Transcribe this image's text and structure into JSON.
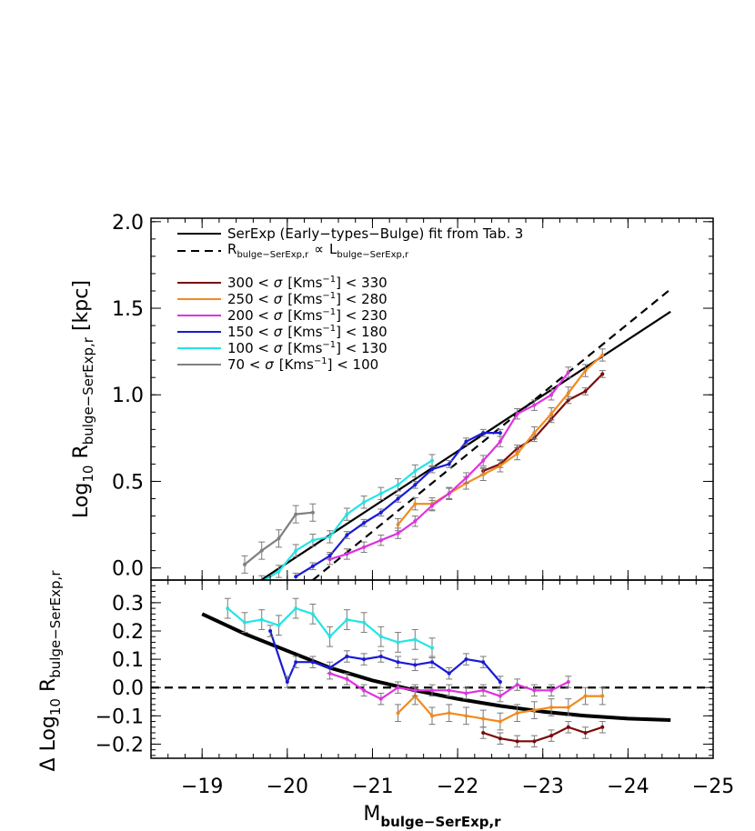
{
  "chart_data": [
    {
      "type": "line",
      "panel": "top",
      "ylabel": "Log10 Rbulge-SerExp,r [kpc]",
      "ylabel_parts": {
        "prefix": "Log",
        "sub1": "10",
        "main": " R",
        "sub2": "bulge−SerExp,r",
        "unit": "  [kpc]"
      },
      "xlim": [
        -18.4,
        -25.0
      ],
      "ylim": [
        -0.07,
        2.02
      ],
      "y_ticks": [
        {
          "value": 0.0,
          "label": "0.0"
        },
        {
          "value": 0.5,
          "label": "0.5"
        },
        {
          "value": 1.0,
          "label": "1.0"
        },
        {
          "value": 1.5,
          "label": "1.5"
        },
        {
          "value": 2.0,
          "label": "2.0"
        }
      ],
      "legend_position": "top-left",
      "legend": {
        "fit": "SerExp (Early−types−Bulge) fit from Tab. 3",
        "proportional": {
          "r_main": "R",
          "r_sub": "bulge−SerExp,r",
          "prop": "∝",
          "l_main": "L",
          "l_sub": "bulge−SerExp,r"
        }
      },
      "fit_line": {
        "x": [
          -19.6,
          -24.5
        ],
        "y": [
          -0.1,
          1.48
        ],
        "style": "solid"
      },
      "proportional_line": {
        "x": [
          -20.3,
          -24.5
        ],
        "y": [
          -0.07,
          1.61
        ],
        "style": "dashed"
      },
      "series": [
        {
          "name": "300 < σ [Kms−1] < 330",
          "legend_parts": {
            "pre": "300 <  ",
            "sigma": "σ",
            "unit": "[Kms",
            "sup": "−1",
            "post": "]  < 330"
          },
          "color": "#7b0a0a",
          "x": [
            -22.3,
            -22.5,
            -22.7,
            -22.9,
            -23.1,
            -23.3,
            -23.5,
            -23.7
          ],
          "y": [
            0.56,
            0.6,
            0.69,
            0.75,
            0.86,
            0.97,
            1.02,
            1.12
          ],
          "err": 0.02
        },
        {
          "name": "250 < σ [Kms−1] < 280",
          "legend_parts": {
            "pre": "250 <  ",
            "sigma": "σ",
            "unit": "[Kms",
            "sup": "−1",
            "post": "]  < 280"
          },
          "color": "#f28a1c",
          "x": [
            -21.3,
            -21.5,
            -21.7,
            -21.9,
            -22.1,
            -22.3,
            -22.5,
            -22.7,
            -22.9,
            -23.1,
            -23.3,
            -23.5,
            -23.7
          ],
          "y": [
            0.25,
            0.37,
            0.37,
            0.43,
            0.49,
            0.54,
            0.59,
            0.66,
            0.78,
            0.89,
            1.01,
            1.14,
            1.23
          ],
          "err": 0.035
        },
        {
          "name": "200 < σ [Kms−1] < 230",
          "legend_parts": {
            "pre": "200 <  ",
            "sigma": "σ",
            "unit": "[Kms",
            "sup": "−1",
            "post": "]  < 230"
          },
          "color": "#e032e0",
          "x": [
            -20.5,
            -20.7,
            -20.9,
            -21.1,
            -21.3,
            -21.5,
            -21.7,
            -21.9,
            -22.1,
            -22.3,
            -22.5,
            -22.7,
            -22.9,
            -23.1,
            -23.3
          ],
          "y": [
            0.05,
            0.08,
            0.12,
            0.16,
            0.2,
            0.27,
            0.36,
            0.43,
            0.52,
            0.62,
            0.73,
            0.89,
            0.94,
            1.0,
            1.13
          ],
          "err": 0.03
        },
        {
          "name": "150 < σ [Kms−1] < 180",
          "legend_parts": {
            "pre": "150 <  ",
            "sigma": "σ",
            "unit": "[Kms",
            "sup": "−1",
            "post": "]  < 180"
          },
          "color": "#1a1ad6",
          "x": [
            -20.1,
            -20.3,
            -20.5,
            -20.7,
            -20.9,
            -21.1,
            -21.3,
            -21.5,
            -21.7,
            -21.9,
            -22.1,
            -22.3,
            -22.5
          ],
          "y": [
            -0.05,
            0.01,
            0.07,
            0.19,
            0.26,
            0.32,
            0.4,
            0.48,
            0.57,
            0.6,
            0.73,
            0.78,
            0.78
          ],
          "err": 0.02
        },
        {
          "name": "100 < σ [Kms−1] < 130",
          "legend_parts": {
            "pre": "100 <  ",
            "sigma": "σ",
            "unit": "[Kms",
            "sup": "−1",
            "post": "]  < 130"
          },
          "color": "#22e5e5",
          "x": [
            -19.5,
            -19.7,
            -19.9,
            -20.1,
            -20.3,
            -20.5,
            -20.7,
            -20.9,
            -21.1,
            -21.3,
            -21.5,
            -21.7
          ],
          "y": [
            -0.18,
            -0.08,
            -0.02,
            0.1,
            0.16,
            0.18,
            0.31,
            0.38,
            0.43,
            0.48,
            0.56,
            0.62
          ],
          "err": 0.035
        },
        {
          "name": "70 < σ [Kms−1] < 100",
          "legend_parts": {
            "pre": "70 <  ",
            "sigma": "σ",
            "unit": "[Kms",
            "sup": "−1",
            "post": "]  < 100"
          },
          "color": "#808080",
          "x": [
            -19.5,
            -19.7,
            -19.9,
            -20.1,
            -20.3
          ],
          "y": [
            0.02,
            0.1,
            0.17,
            0.31,
            0.32
          ],
          "err": 0.05
        }
      ]
    },
    {
      "type": "line",
      "panel": "bottom",
      "xlabel": "Mbulge-SerExp,r",
      "xlabel_parts": {
        "main": "M",
        "sub": "bulge−SerExp,r"
      },
      "ylabel": "Δ Log10 Rbulge-SerExp,r",
      "ylabel_parts": {
        "delta": "Δ",
        "prefix": "  Log",
        "sub1": "10",
        "main": " R",
        "sub2": "bulge−SerExp,r"
      },
      "xlim": [
        -18.4,
        -25.0
      ],
      "ylim": [
        -0.25,
        0.38
      ],
      "x_ticks": [
        {
          "value": -19,
          "label": "−19"
        },
        {
          "value": -20,
          "label": "−20"
        },
        {
          "value": -21,
          "label": "−21"
        },
        {
          "value": -22,
          "label": "−22"
        },
        {
          "value": -23,
          "label": "−23"
        },
        {
          "value": -24,
          "label": "−24"
        },
        {
          "value": -25,
          "label": "−25"
        }
      ],
      "y_ticks": [
        {
          "value": -0.2,
          "label": "−0.2"
        },
        {
          "value": -0.1,
          "label": "−0.1"
        },
        {
          "value": 0.0,
          "label": "0.0"
        },
        {
          "value": 0.1,
          "label": "0.1"
        },
        {
          "value": 0.2,
          "label": "0.2"
        },
        {
          "value": 0.3,
          "label": "0.3"
        }
      ],
      "zero_line": {
        "y": 0.0,
        "style": "dashed"
      },
      "residual_curve": {
        "x": [
          -19.0,
          -19.5,
          -20.0,
          -20.5,
          -21.0,
          -21.5,
          -22.0,
          -22.5,
          -23.0,
          -23.5,
          -24.0,
          -24.5
        ],
        "y": [
          0.26,
          0.19,
          0.13,
          0.07,
          0.025,
          -0.01,
          -0.04,
          -0.065,
          -0.085,
          -0.1,
          -0.11,
          -0.115
        ]
      },
      "series": [
        {
          "name": "300 < σ [Kms−1] < 330",
          "color": "#7b0a0a",
          "x": [
            -22.3,
            -22.5,
            -22.7,
            -22.9,
            -23.1,
            -23.3,
            -23.5,
            -23.7
          ],
          "y": [
            -0.16,
            -0.18,
            -0.19,
            -0.19,
            -0.17,
            -0.14,
            -0.16,
            -0.14
          ],
          "err": 0.02
        },
        {
          "name": "250 < σ [Kms−1] < 280",
          "color": "#f28a1c",
          "x": [
            -21.3,
            -21.5,
            -21.7,
            -21.9,
            -22.1,
            -22.3,
            -22.5,
            -22.7,
            -22.9,
            -23.1,
            -23.3,
            -23.5,
            -23.7
          ],
          "y": [
            -0.09,
            -0.03,
            -0.1,
            -0.09,
            -0.1,
            -0.11,
            -0.12,
            -0.09,
            -0.08,
            -0.07,
            -0.07,
            -0.03,
            -0.03
          ],
          "err": 0.03
        },
        {
          "name": "200 < σ [Kms−1] < 230",
          "color": "#e032e0",
          "x": [
            -20.5,
            -20.7,
            -20.9,
            -21.1,
            -21.3,
            -21.5,
            -21.7,
            -21.9,
            -22.1,
            -22.3,
            -22.5,
            -22.7,
            -22.9,
            -23.1,
            -23.3
          ],
          "y": [
            0.05,
            0.03,
            -0.01,
            -0.04,
            0.0,
            -0.01,
            -0.01,
            -0.01,
            -0.02,
            -0.01,
            -0.03,
            0.01,
            -0.01,
            -0.01,
            0.02
          ],
          "err": 0.02
        },
        {
          "name": "150 < σ [Kms−1] < 180",
          "color": "#1a1ad6",
          "x": [
            -19.8,
            -20.0,
            -20.1,
            -20.3,
            -20.5,
            -20.7,
            -20.9,
            -21.1,
            -21.3,
            -21.5,
            -21.7,
            -21.9,
            -22.1,
            -22.3,
            -22.5
          ],
          "y": [
            0.2,
            0.02,
            0.09,
            0.09,
            0.07,
            0.11,
            0.1,
            0.11,
            0.09,
            0.08,
            0.09,
            0.05,
            0.1,
            0.09,
            0.02
          ],
          "err": 0.02
        },
        {
          "name": "100 < σ [Kms−1] < 130",
          "color": "#22e5e5",
          "x": [
            -19.3,
            -19.5,
            -19.7,
            -19.9,
            -20.1,
            -20.3,
            -20.5,
            -20.7,
            -20.9,
            -21.1,
            -21.3,
            -21.5,
            -21.7
          ],
          "y": [
            0.28,
            0.23,
            0.24,
            0.22,
            0.28,
            0.26,
            0.18,
            0.24,
            0.23,
            0.18,
            0.16,
            0.17,
            0.14
          ],
          "err": 0.035
        }
      ]
    }
  ]
}
